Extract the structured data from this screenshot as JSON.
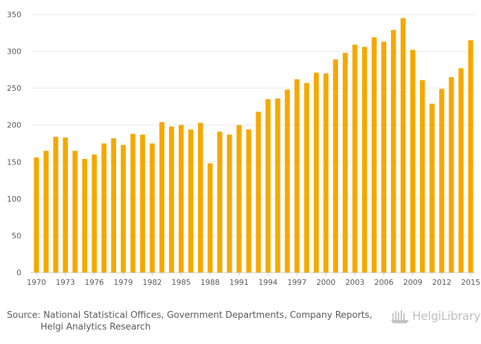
{
  "chart_data": {
    "type": "bar",
    "title": "",
    "xlabel": "",
    "ylabel": "",
    "color": "#f5a800",
    "ylim": [
      0,
      350
    ],
    "yticks": [
      0,
      50,
      100,
      150,
      200,
      250,
      300,
      350
    ],
    "xtick_labels": [
      "1970",
      "1973",
      "1976",
      "1979",
      "1982",
      "1985",
      "1988",
      "1991",
      "1994",
      "1997",
      "2000",
      "2003",
      "2006",
      "2009",
      "2012",
      "2015"
    ],
    "categories": [
      "1970",
      "1971",
      "1972",
      "1973",
      "1974",
      "1975",
      "1976",
      "1977",
      "1978",
      "1979",
      "1980",
      "1981",
      "1982",
      "1983",
      "1984",
      "1985",
      "1986",
      "1987",
      "1988",
      "1989",
      "1990",
      "1991",
      "1992",
      "1993",
      "1994",
      "1995",
      "1996",
      "1997",
      "1998",
      "1999",
      "2000",
      "2001",
      "2002",
      "2003",
      "2004",
      "2005",
      "2006",
      "2007",
      "2008",
      "2009",
      "2010",
      "2011",
      "2012",
      "2013",
      "2014",
      "2015"
    ],
    "values": [
      156,
      165,
      184,
      183,
      165,
      154,
      160,
      175,
      182,
      173,
      188,
      187,
      175,
      204,
      198,
      200,
      194,
      203,
      148,
      191,
      187,
      200,
      194,
      218,
      235,
      236,
      248,
      262,
      257,
      271,
      270,
      289,
      298,
      309,
      306,
      319,
      313,
      329,
      345,
      302,
      261,
      229,
      249,
      265,
      277,
      315
    ]
  },
  "footer": {
    "source_line1": "Source: National Statistical Offices, Government Departments, Company Reports,",
    "source_line2": "Helgi Analytics Research",
    "logo_text": "HelgiLibrary",
    "logo_icon": "helgi-ship-icon"
  }
}
